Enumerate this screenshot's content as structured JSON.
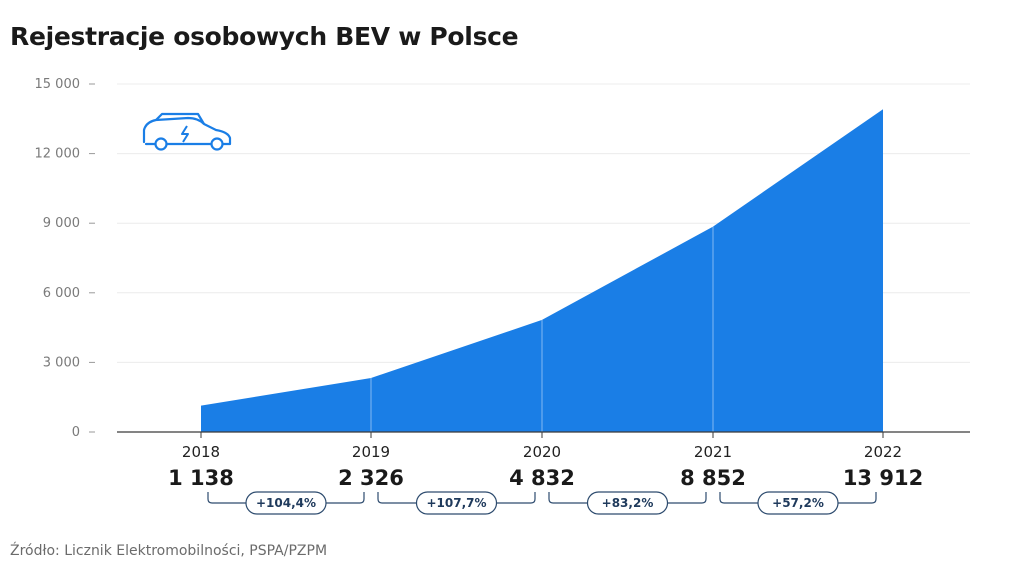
{
  "title": "Rejestracje osobowych BEV w Polsce",
  "source": "Źródło: Licznik Elektromobilności, PSPA/PZPM",
  "icon": "electric-car-icon",
  "colors": {
    "area": "#1a7ee6",
    "icon": "#1a7ee6",
    "bracket": "#2d4b6e"
  },
  "chart_data": {
    "type": "area",
    "x": [
      "2018",
      "2019",
      "2020",
      "2021",
      "2022"
    ],
    "values": [
      1138,
      2326,
      4832,
      8852,
      13912
    ],
    "value_labels": [
      "1 138",
      "2 326",
      "4 832",
      "8 852",
      "13 912"
    ],
    "yticks": [
      0,
      3000,
      6000,
      9000,
      12000,
      15000
    ],
    "ytick_labels": [
      "0",
      "3 000",
      "6 000",
      "9 000",
      "12 000",
      "15 000"
    ],
    "ylim": [
      0,
      15000
    ],
    "growth": [
      "+104,4%",
      "+107,7%",
      "+83,2%",
      "+57,2%"
    ],
    "grid": true
  }
}
